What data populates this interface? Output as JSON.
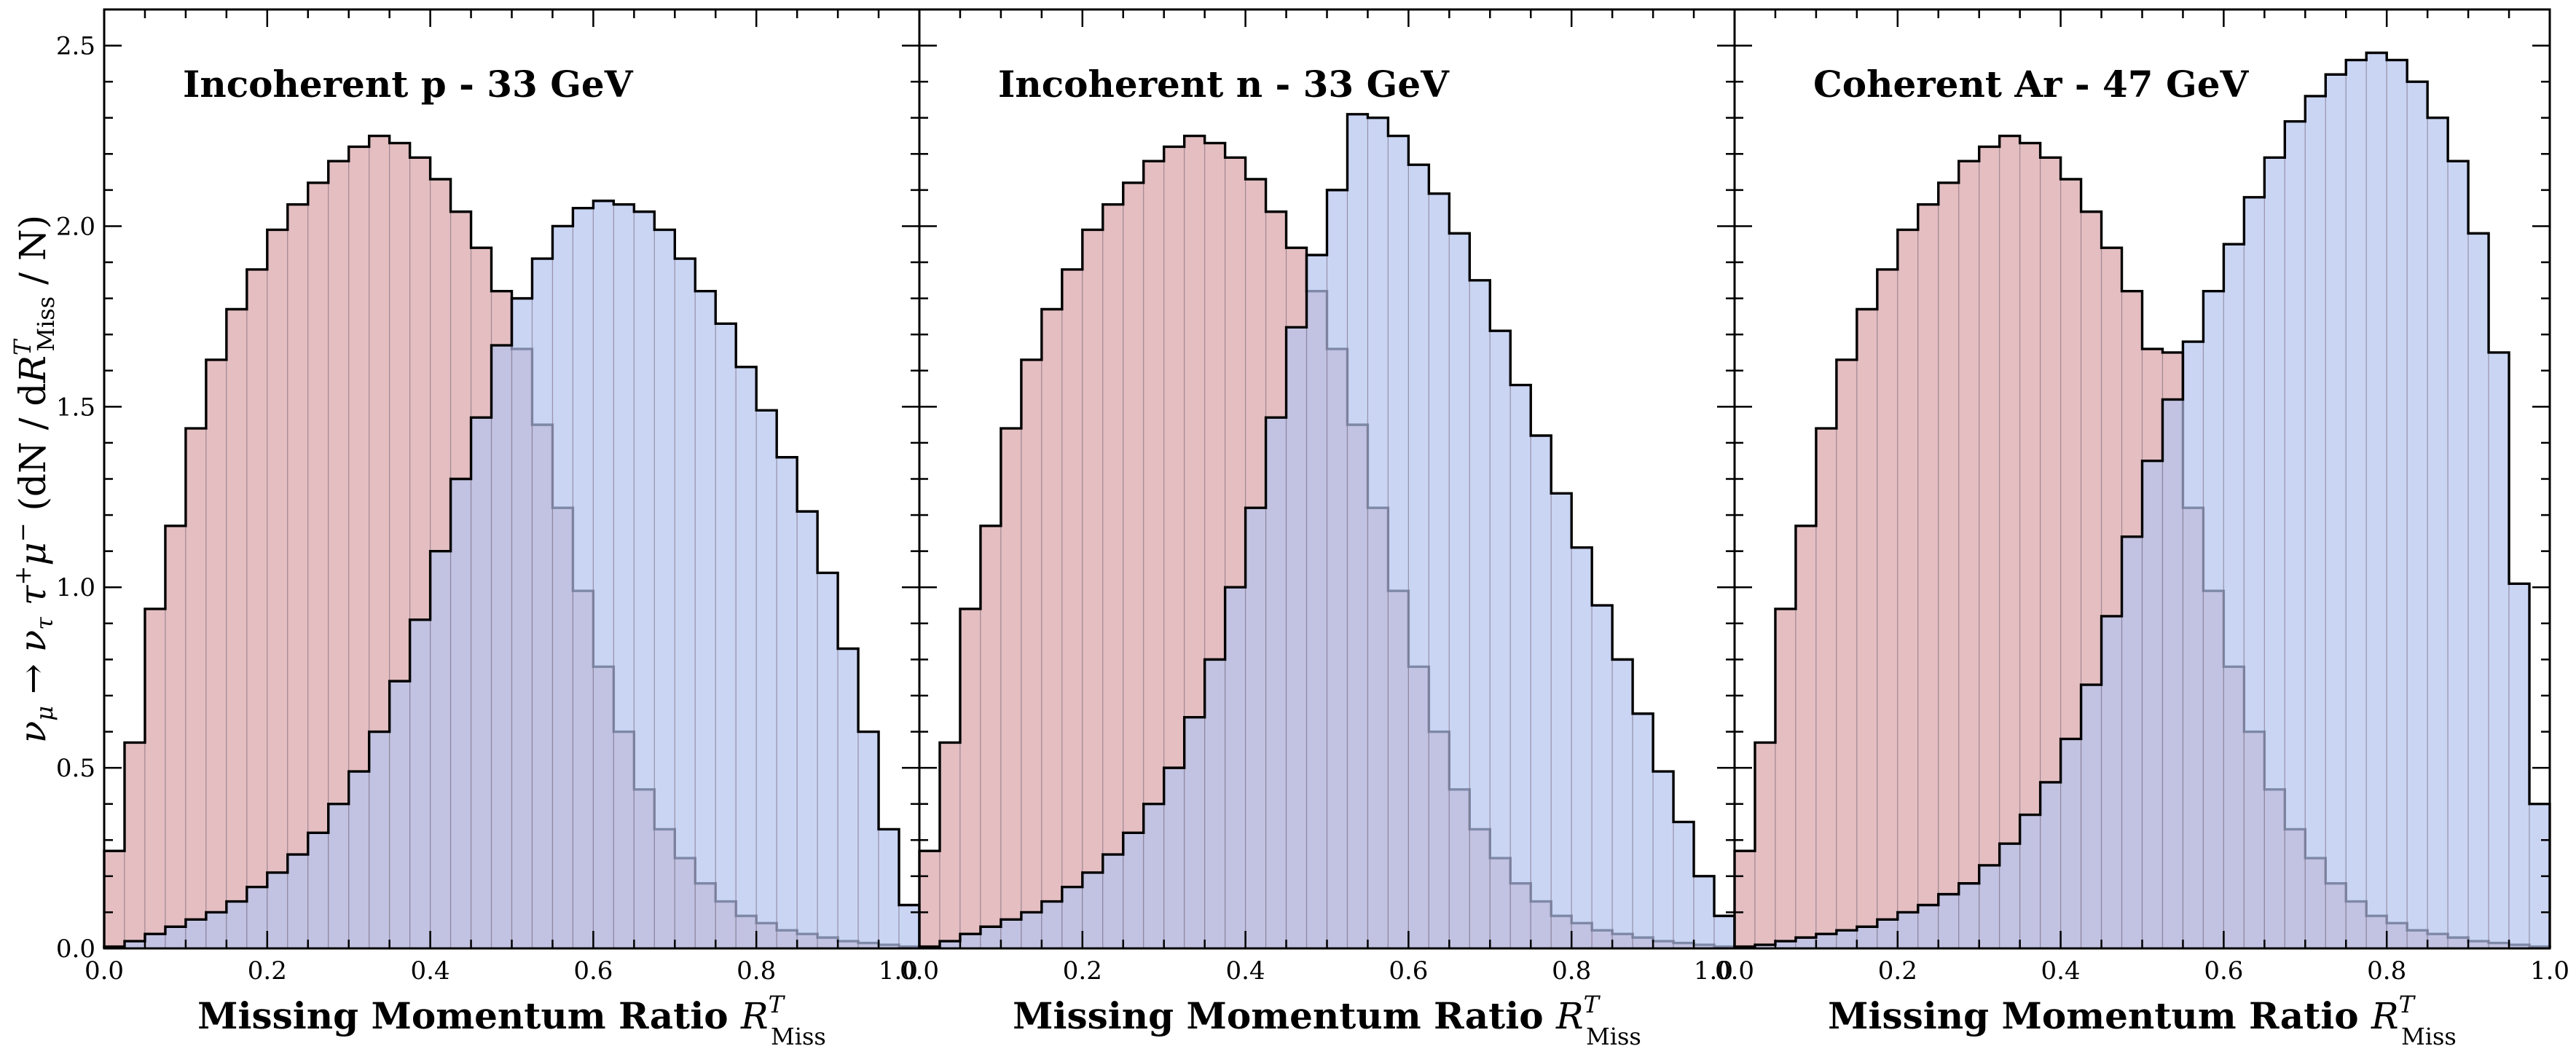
{
  "chart_data": [
    {
      "type": "bar",
      "title": "Incoherent p - 33 GeV",
      "xlabel": "Missing Momentum Ratio R^T_Miss",
      "ylabel": "ν_μ → ν_τ τ⁺ μ⁻ (dN / dR^T_Miss / N)",
      "xlim": [
        0.0,
        1.0
      ],
      "ylim": [
        0.0,
        2.6
      ],
      "x_ticks": [
        "0.0",
        "0.2",
        "0.4",
        "0.6",
        "0.8",
        "1.0"
      ],
      "y_ticks": [
        "0.0",
        "0.5",
        "1.0",
        "1.5",
        "2.0",
        "2.5"
      ],
      "bin_width": 0.025,
      "series": [
        {
          "color": "#d9a3a6",
          "values": [
            0.27,
            0.57,
            0.94,
            1.17,
            1.44,
            1.63,
            1.77,
            1.88,
            1.99,
            2.06,
            2.12,
            2.18,
            2.22,
            2.25,
            2.23,
            2.19,
            2.13,
            2.04,
            1.94,
            1.82,
            1.66,
            1.45,
            1.22,
            0.99,
            0.78,
            0.6,
            0.44,
            0.33,
            0.25,
            0.18,
            0.13,
            0.09,
            0.07,
            0.05,
            0.04,
            0.03,
            0.02,
            0.015,
            0.01,
            0.005
          ]
        },
        {
          "color": "#b3c3ef",
          "values": [
            0.005,
            0.02,
            0.04,
            0.06,
            0.08,
            0.1,
            0.13,
            0.17,
            0.21,
            0.26,
            0.32,
            0.4,
            0.49,
            0.6,
            0.74,
            0.91,
            1.1,
            1.3,
            1.47,
            1.67,
            1.8,
            1.91,
            2.0,
            2.05,
            2.07,
            2.06,
            2.04,
            1.99,
            1.91,
            1.82,
            1.73,
            1.61,
            1.49,
            1.36,
            1.21,
            1.04,
            0.83,
            0.6,
            0.33,
            0.12
          ]
        }
      ]
    },
    {
      "type": "bar",
      "title": "Incoherent n - 33 GeV",
      "xlabel": "Missing Momentum Ratio R^T_Miss",
      "xlim": [
        0.0,
        1.0
      ],
      "ylim": [
        0.0,
        2.6
      ],
      "x_ticks": [
        "0.0",
        "0.2",
        "0.4",
        "0.6",
        "0.8",
        "1.0"
      ],
      "bin_width": 0.025,
      "series": [
        {
          "color": "#d9a3a6",
          "values": [
            0.27,
            0.57,
            0.94,
            1.17,
            1.44,
            1.63,
            1.77,
            1.88,
            1.99,
            2.06,
            2.12,
            2.18,
            2.22,
            2.25,
            2.23,
            2.19,
            2.13,
            2.04,
            1.94,
            1.82,
            1.66,
            1.45,
            1.22,
            0.99,
            0.78,
            0.6,
            0.44,
            0.33,
            0.25,
            0.18,
            0.13,
            0.09,
            0.07,
            0.05,
            0.04,
            0.03,
            0.02,
            0.015,
            0.01,
            0.005
          ]
        },
        {
          "color": "#b3c3ef",
          "values": [
            0.005,
            0.02,
            0.04,
            0.06,
            0.08,
            0.1,
            0.13,
            0.17,
            0.21,
            0.26,
            0.32,
            0.4,
            0.5,
            0.64,
            0.8,
            1.0,
            1.22,
            1.47,
            1.72,
            1.92,
            2.1,
            2.31,
            2.3,
            2.25,
            2.17,
            2.09,
            1.98,
            1.85,
            1.71,
            1.56,
            1.42,
            1.26,
            1.11,
            0.95,
            0.8,
            0.65,
            0.49,
            0.35,
            0.2,
            0.09
          ]
        }
      ]
    },
    {
      "type": "bar",
      "title": "Coherent Ar - 47 GeV",
      "xlabel": "Missing Momentum Ratio R^T_Miss",
      "xlim": [
        0.0,
        1.0
      ],
      "ylim": [
        0.0,
        2.6
      ],
      "x_ticks": [
        "0.0",
        "0.2",
        "0.4",
        "0.6",
        "0.8",
        "1.0"
      ],
      "bin_width": 0.025,
      "series": [
        {
          "color": "#d9a3a6",
          "values": [
            0.27,
            0.57,
            0.94,
            1.17,
            1.44,
            1.63,
            1.77,
            1.88,
            1.99,
            2.06,
            2.12,
            2.18,
            2.22,
            2.25,
            2.23,
            2.19,
            2.13,
            2.04,
            1.94,
            1.82,
            1.66,
            1.65,
            1.22,
            0.99,
            0.78,
            0.6,
            0.44,
            0.33,
            0.25,
            0.18,
            0.13,
            0.09,
            0.07,
            0.05,
            0.04,
            0.03,
            0.02,
            0.015,
            0.01,
            0.005
          ]
        },
        {
          "color": "#b3c3ef",
          "values": [
            0.005,
            0.01,
            0.02,
            0.03,
            0.04,
            0.05,
            0.06,
            0.08,
            0.1,
            0.12,
            0.15,
            0.18,
            0.23,
            0.29,
            0.37,
            0.46,
            0.58,
            0.73,
            0.92,
            1.14,
            1.35,
            1.52,
            1.68,
            1.82,
            1.95,
            2.08,
            2.19,
            2.29,
            2.36,
            2.42,
            2.46,
            2.48,
            2.46,
            2.4,
            2.3,
            2.18,
            1.98,
            1.65,
            1.01,
            0.4
          ]
        }
      ]
    }
  ]
}
